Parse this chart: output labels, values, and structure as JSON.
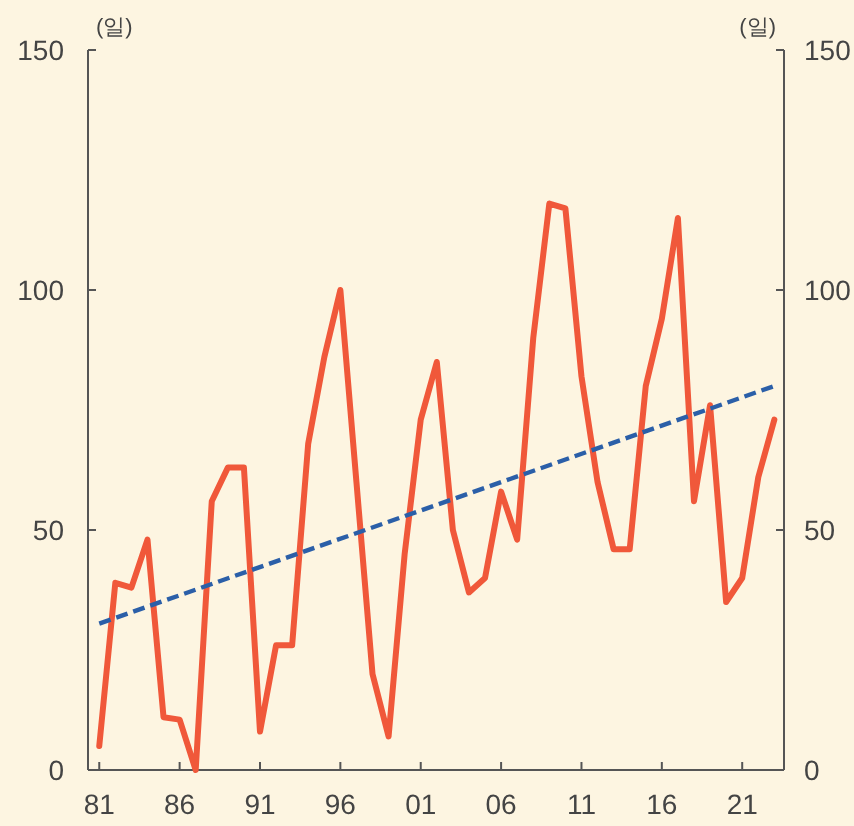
{
  "chart_data": {
    "type": "line",
    "ylabel": "(일)",
    "y2label": "(일)",
    "x": [
      1981,
      1982,
      1983,
      1984,
      1985,
      1986,
      1987,
      1988,
      1989,
      1990,
      1991,
      1992,
      1993,
      1994,
      1995,
      1996,
      1997,
      1998,
      1999,
      2000,
      2001,
      2002,
      2003,
      2004,
      2005,
      2006,
      2007,
      2008,
      2009,
      2010,
      2011,
      2012,
      2013,
      2014,
      2015,
      2016,
      2017,
      2018,
      2019,
      2020,
      2021,
      2022,
      2023
    ],
    "series": [
      {
        "color": "#f0583a",
        "values": [
          5,
          39,
          38,
          48,
          11,
          10.5,
          0,
          56,
          63,
          63,
          8,
          26,
          26,
          68,
          86,
          100,
          60,
          20,
          7,
          45,
          73,
          85,
          50,
          37,
          40,
          58,
          48,
          90,
          118,
          117,
          82,
          60,
          46,
          46,
          80,
          94,
          115,
          56,
          76,
          35,
          40,
          61,
          73
        ]
      },
      {
        "type": "line",
        "color": "#2b5fa8",
        "line_style": "dashed",
        "x": [
          1981,
          2023
        ],
        "values": [
          30.5,
          80
        ]
      }
    ],
    "xlim": [
      1980.3,
      2023.6
    ],
    "xticks": [
      {
        "value": 1981,
        "label": "81"
      },
      {
        "value": 1986,
        "label": "86"
      },
      {
        "value": 1991,
        "label": "91"
      },
      {
        "value": 1996,
        "label": "96"
      },
      {
        "value": 2001,
        "label": "01"
      },
      {
        "value": 2006,
        "label": "06"
      },
      {
        "value": 2011,
        "label": "11"
      },
      {
        "value": 2016,
        "label": "16"
      },
      {
        "value": 2021,
        "label": "21"
      }
    ],
    "ylim": [
      0,
      150
    ],
    "yticks": [
      0,
      50,
      100,
      150
    ],
    "y2lim": [
      0,
      150
    ],
    "y2ticks": [
      0,
      50,
      100,
      150
    ],
    "grid": false,
    "marker": "none"
  }
}
